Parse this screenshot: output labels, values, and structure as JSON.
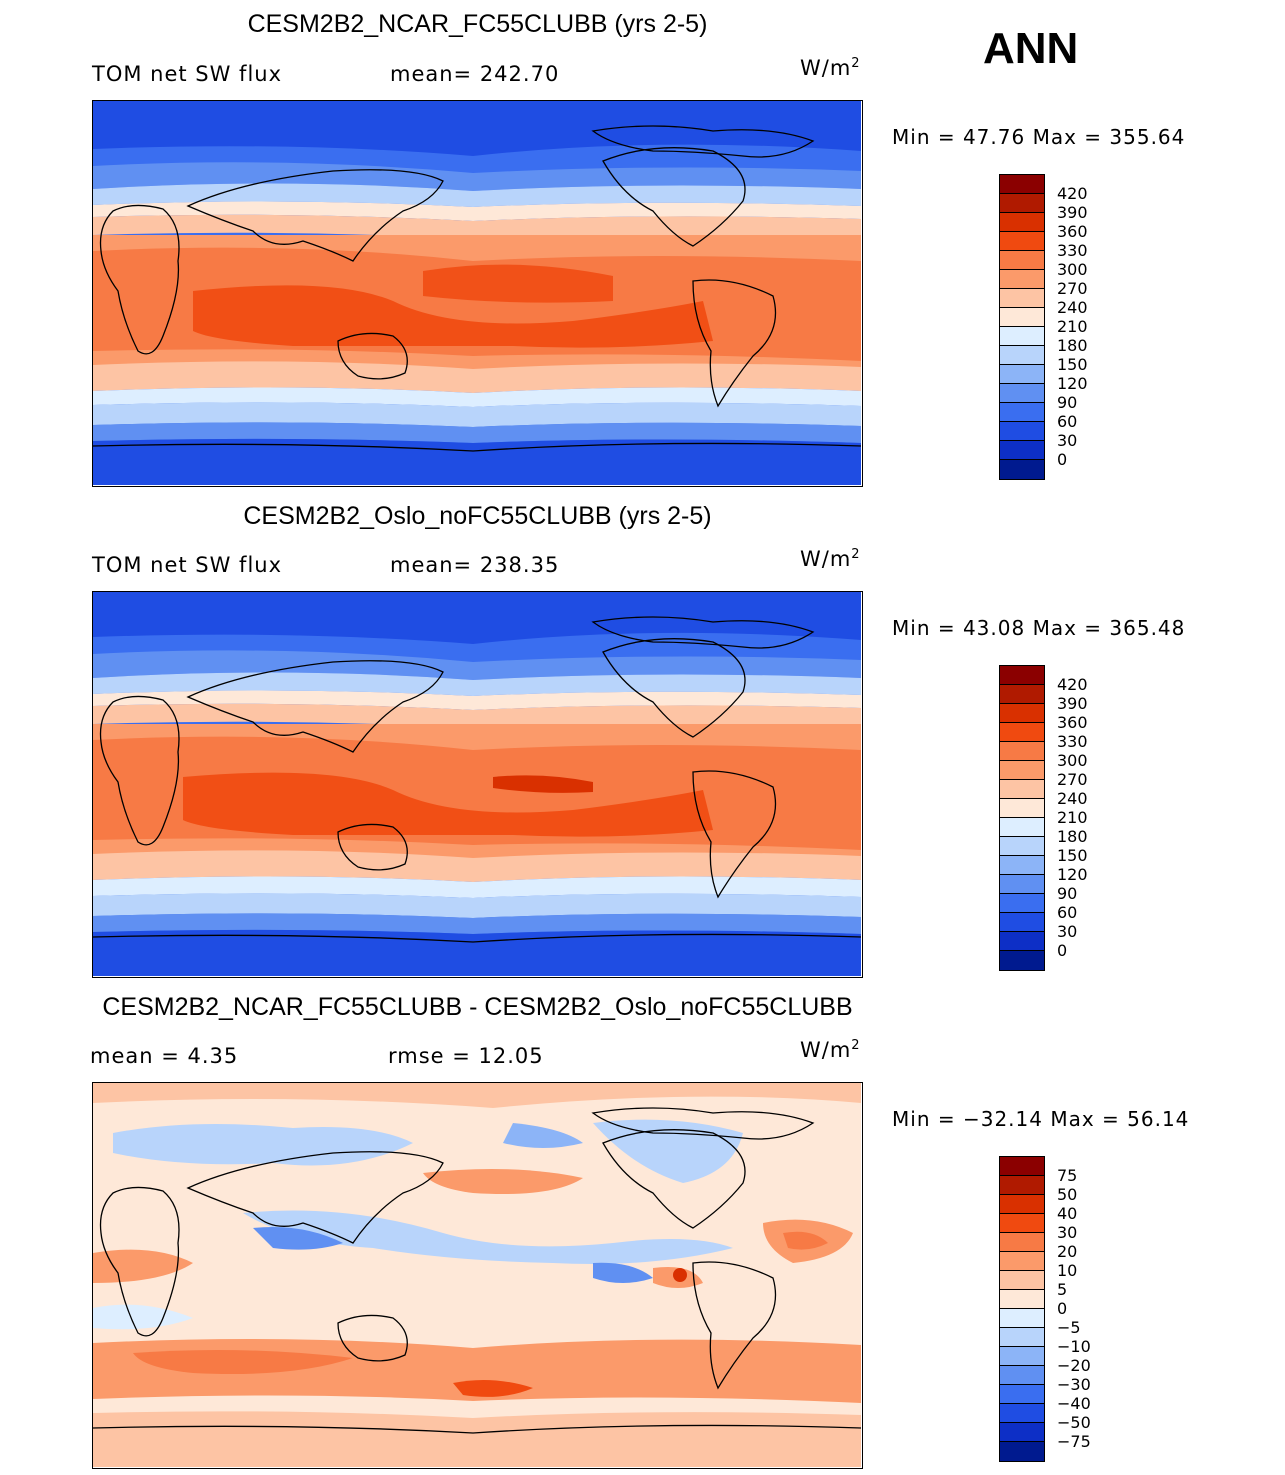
{
  "season": "ANN",
  "panels": [
    {
      "title": "CESM2B2_NCAR_FC55CLUBB (yrs 2-5)",
      "left_label": "TOM net SW flux",
      "center_label": "mean= 242.70",
      "units": "W/m",
      "units_sup": "2",
      "minmax": "Min =   47.76 Max = 355.64",
      "levels": [
        "420",
        "390",
        "360",
        "330",
        "300",
        "270",
        "240",
        "210",
        "180",
        "150",
        "120",
        "90",
        "60",
        "30",
        "0"
      ],
      "colors": [
        "#8b0000",
        "#b01a00",
        "#d93000",
        "#f04a10",
        "#f77a45",
        "#fb9a6a",
        "#fdc4a4",
        "#fee8d8",
        "#ddeeff",
        "#b8d4fb",
        "#8cb4f7",
        "#6090f2",
        "#3a6ef0",
        "#1f4de3",
        "#0d2fc6",
        "#001a8f"
      ]
    },
    {
      "title": "CESM2B2_Oslo_noFC55CLUBB (yrs 2-5)",
      "left_label": "TOM net SW flux",
      "center_label": "mean= 238.35",
      "units": "W/m",
      "units_sup": "2",
      "minmax": "Min =   43.08 Max = 365.48",
      "levels": [
        "420",
        "390",
        "360",
        "330",
        "300",
        "270",
        "240",
        "210",
        "180",
        "150",
        "120",
        "90",
        "60",
        "30",
        "0"
      ],
      "colors": [
        "#8b0000",
        "#b01a00",
        "#d93000",
        "#f04a10",
        "#f77a45",
        "#fb9a6a",
        "#fdc4a4",
        "#fee8d8",
        "#ddeeff",
        "#b8d4fb",
        "#8cb4f7",
        "#6090f2",
        "#3a6ef0",
        "#1f4de3",
        "#0d2fc6",
        "#001a8f"
      ]
    },
    {
      "title": "CESM2B2_NCAR_FC55CLUBB - CESM2B2_Oslo_noFC55CLUBB",
      "left_label": "mean =    4.35",
      "center_label": "rmse =   12.05",
      "units": "W/m",
      "units_sup": "2",
      "minmax": "Min = −32.14 Max =   56.14",
      "levels": [
        "75",
        "50",
        "40",
        "30",
        "20",
        "10",
        "5",
        "0",
        "−5",
        "−10",
        "−20",
        "−30",
        "−40",
        "−50",
        "−75"
      ],
      "colors": [
        "#8b0000",
        "#b01a00",
        "#d93000",
        "#f04a10",
        "#f77a45",
        "#fb9a6a",
        "#fdc4a4",
        "#fee8d8",
        "#ddeeff",
        "#b8d4fb",
        "#8cb4f7",
        "#6090f2",
        "#3a6ef0",
        "#1f4de3",
        "#0d2fc6",
        "#001a8f"
      ]
    }
  ]
}
